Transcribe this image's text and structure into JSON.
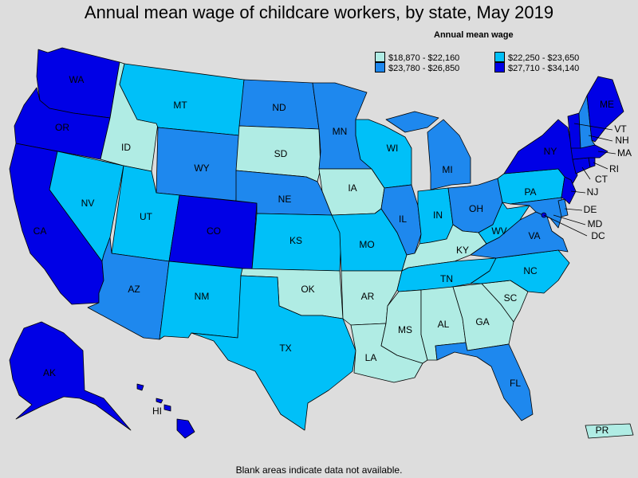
{
  "title": "Annual mean wage of childcare workers, by state, May 2019",
  "legend": {
    "title": "Annual mean wage",
    "items": [
      {
        "key": "c1",
        "label": "$18,870 - $22,160",
        "color": "#b0ece4"
      },
      {
        "key": "c2",
        "label": "$22,250 - $23,650",
        "color": "#00c0f8"
      },
      {
        "key": "c3",
        "label": "$23,780 - $26,850",
        "color": "#1e88ee"
      },
      {
        "key": "c4",
        "label": "$27,710 - $34,140",
        "color": "#0000e6"
      }
    ]
  },
  "footnote": "Blank areas indicate data not available.",
  "states": {
    "WA": {
      "label": "WA",
      "class": "c4"
    },
    "OR": {
      "label": "OR",
      "class": "c4"
    },
    "CA": {
      "label": "CA",
      "class": "c4"
    },
    "NV": {
      "label": "NV",
      "class": "c2"
    },
    "ID": {
      "label": "ID",
      "class": "c1"
    },
    "MT": {
      "label": "MT",
      "class": "c2"
    },
    "WY": {
      "label": "WY",
      "class": "c3"
    },
    "UT": {
      "label": "UT",
      "class": "c2"
    },
    "AZ": {
      "label": "AZ",
      "class": "c3"
    },
    "CO": {
      "label": "CO",
      "class": "c4"
    },
    "NM": {
      "label": "NM",
      "class": "c2"
    },
    "ND": {
      "label": "ND",
      "class": "c3"
    },
    "SD": {
      "label": "SD",
      "class": "c1"
    },
    "NE": {
      "label": "NE",
      "class": "c3"
    },
    "KS": {
      "label": "KS",
      "class": "c2"
    },
    "OK": {
      "label": "OK",
      "class": "c1"
    },
    "TX": {
      "label": "TX",
      "class": "c2"
    },
    "MN": {
      "label": "MN",
      "class": "c3"
    },
    "IA": {
      "label": "IA",
      "class": "c1"
    },
    "MO": {
      "label": "MO",
      "class": "c2"
    },
    "AR": {
      "label": "AR",
      "class": "c1"
    },
    "LA": {
      "label": "LA",
      "class": "c1"
    },
    "WI": {
      "label": "WI",
      "class": "c2"
    },
    "IL": {
      "label": "IL",
      "class": "c3"
    },
    "MI": {
      "label": "MI",
      "class": "c3"
    },
    "IN": {
      "label": "IN",
      "class": "c2"
    },
    "OH": {
      "label": "OH",
      "class": "c3"
    },
    "KY": {
      "label": "KY",
      "class": "c1"
    },
    "TN": {
      "label": "TN",
      "class": "c2"
    },
    "MS": {
      "label": "MS",
      "class": "c1"
    },
    "AL": {
      "label": "AL",
      "class": "c1"
    },
    "GA": {
      "label": "GA",
      "class": "c1"
    },
    "FL": {
      "label": "FL",
      "class": "c3"
    },
    "SC": {
      "label": "SC",
      "class": "c1"
    },
    "NC": {
      "label": "NC",
      "class": "c2"
    },
    "VA": {
      "label": "VA",
      "class": "c3"
    },
    "WV": {
      "label": "WV",
      "class": "c2"
    },
    "PA": {
      "label": "PA",
      "class": "c2"
    },
    "NY": {
      "label": "NY",
      "class": "c4"
    },
    "VT": {
      "label": "VT",
      "class": "c4"
    },
    "NH": {
      "label": "NH",
      "class": "c3"
    },
    "ME": {
      "label": "ME",
      "class": "c4"
    },
    "MA": {
      "label": "MA",
      "class": "c4"
    },
    "RI": {
      "label": "RI",
      "class": "c4"
    },
    "CT": {
      "label": "CT",
      "class": "c4"
    },
    "NJ": {
      "label": "NJ",
      "class": "c4"
    },
    "DE": {
      "label": "DE",
      "class": "c3"
    },
    "MD": {
      "label": "MD",
      "class": "c3"
    },
    "DC": {
      "label": "DC",
      "class": "c4"
    },
    "AK": {
      "label": "AK",
      "class": "c4"
    },
    "HI": {
      "label": "HI",
      "class": "c4"
    },
    "PR": {
      "label": "PR",
      "class": "c1"
    }
  }
}
